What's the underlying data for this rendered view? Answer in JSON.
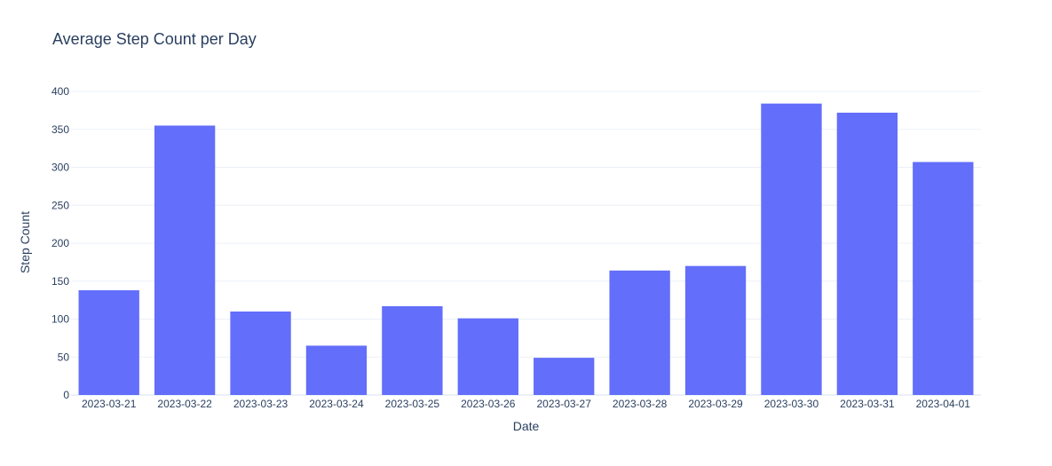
{
  "chart_data": {
    "type": "bar",
    "title": "Average Step Count per Day",
    "xlabel": "Date",
    "ylabel": "Step Count",
    "ylim": [
      0,
      400
    ],
    "yticks": [
      0,
      50,
      100,
      150,
      200,
      250,
      300,
      350,
      400
    ],
    "grid": true,
    "legend": "none",
    "bar_color": "#636efa",
    "categories": [
      "2023-03-21",
      "2023-03-22",
      "2023-03-23",
      "2023-03-24",
      "2023-03-25",
      "2023-03-26",
      "2023-03-27",
      "2023-03-28",
      "2023-03-29",
      "2023-03-30",
      "2023-03-31",
      "2023-04-01"
    ],
    "values": [
      138,
      355,
      110,
      65,
      117,
      101,
      49,
      164,
      170,
      384,
      372,
      307
    ]
  }
}
